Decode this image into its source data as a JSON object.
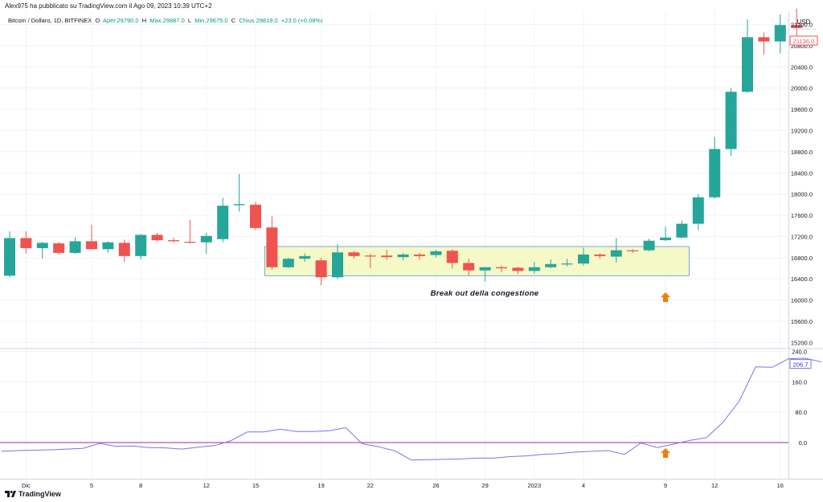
{
  "header": {
    "publisher": "Alex975 ha pubblicato su TradingView.com il Ago 09, 2023 10:39 UTC+2"
  },
  "legend": {
    "symbol": "Bitcoin / Dollaro, 1D, BITFINEX",
    "o_label": "O",
    "aper": "Aper.29790.0",
    "h_label": "H",
    "max": "Max.29887.0",
    "l_label": "L",
    "min": "Min.29675.0",
    "c_label": "C",
    "chius": "Chius.29819.0",
    "change": "+23.0 (+0.08%)"
  },
  "footer": {
    "logo_text": "TradingView"
  },
  "colors": {
    "up": "#26a69a",
    "down": "#ef5350",
    "indicator": "#7e71f0",
    "zero_line": "#9c27b0",
    "zone_fill": "#f5f9c8",
    "zone_stroke": "#5b8fdb",
    "arrow": "#f57c00",
    "axis_text": "#131722"
  },
  "chart_data": [
    {
      "type": "candlestick",
      "currency_label": "USD",
      "last_price_label": "21136.0",
      "y_ticks": [
        "21200.0",
        "20800.0",
        "20400.0",
        "20000.0",
        "19600.0",
        "19200.0",
        "18800.0",
        "18400.0",
        "18000.0",
        "17600.0",
        "17200.0",
        "16800.0",
        "16400.0",
        "16000.0",
        "15600.0",
        "15200.0"
      ],
      "ylim": [
        15100,
        21450
      ],
      "x_ticks": [
        {
          "i": 1,
          "label": "Dic"
        },
        {
          "i": 5,
          "label": "5"
        },
        {
          "i": 8,
          "label": "8"
        },
        {
          "i": 12,
          "label": "12"
        },
        {
          "i": 15,
          "label": "15"
        },
        {
          "i": 19,
          "label": "19"
        },
        {
          "i": 22,
          "label": "22"
        },
        {
          "i": 26,
          "label": "26"
        },
        {
          "i": 29,
          "label": "29"
        },
        {
          "i": 32,
          "label": "2023"
        },
        {
          "i": 35,
          "label": "4"
        },
        {
          "i": 40,
          "label": "9"
        },
        {
          "i": 43,
          "label": "12"
        },
        {
          "i": 47,
          "label": "16"
        }
      ],
      "candles": [
        {
          "o": 16460,
          "h": 17300,
          "l": 16430,
          "c": 17170
        },
        {
          "o": 17170,
          "h": 17300,
          "l": 16880,
          "c": 16980
        },
        {
          "o": 16980,
          "h": 17100,
          "l": 16780,
          "c": 17080
        },
        {
          "o": 17070,
          "h": 17100,
          "l": 16860,
          "c": 16890
        },
        {
          "o": 16890,
          "h": 17190,
          "l": 16870,
          "c": 17110
        },
        {
          "o": 17110,
          "h": 17420,
          "l": 16960,
          "c": 16960
        },
        {
          "o": 16960,
          "h": 17110,
          "l": 16890,
          "c": 17090
        },
        {
          "o": 17080,
          "h": 17140,
          "l": 16720,
          "c": 16830
        },
        {
          "o": 16830,
          "h": 17250,
          "l": 16770,
          "c": 17230
        },
        {
          "o": 17230,
          "h": 17270,
          "l": 17100,
          "c": 17130
        },
        {
          "o": 17130,
          "h": 17180,
          "l": 17090,
          "c": 17110
        },
        {
          "o": 17100,
          "h": 17510,
          "l": 17070,
          "c": 17090
        },
        {
          "o": 17090,
          "h": 17270,
          "l": 16870,
          "c": 17210
        },
        {
          "o": 17150,
          "h": 17930,
          "l": 17090,
          "c": 17780
        },
        {
          "o": 17790,
          "h": 18380,
          "l": 17670,
          "c": 17810
        },
        {
          "o": 17800,
          "h": 17850,
          "l": 17320,
          "c": 17360
        },
        {
          "o": 17370,
          "h": 17580,
          "l": 16570,
          "c": 16620
        },
        {
          "o": 16620,
          "h": 16800,
          "l": 16600,
          "c": 16780
        },
        {
          "o": 16780,
          "h": 16880,
          "l": 16720,
          "c": 16830
        },
        {
          "o": 16750,
          "h": 16800,
          "l": 16280,
          "c": 16430
        },
        {
          "o": 16430,
          "h": 17060,
          "l": 16400,
          "c": 16900
        },
        {
          "o": 16900,
          "h": 16930,
          "l": 16780,
          "c": 16830
        },
        {
          "o": 16840,
          "h": 16870,
          "l": 16600,
          "c": 16830
        },
        {
          "o": 16840,
          "h": 16950,
          "l": 16760,
          "c": 16810
        },
        {
          "o": 16810,
          "h": 16890,
          "l": 16750,
          "c": 16860
        },
        {
          "o": 16860,
          "h": 16890,
          "l": 16760,
          "c": 16830
        },
        {
          "o": 16850,
          "h": 16950,
          "l": 16800,
          "c": 16920
        },
        {
          "o": 16930,
          "h": 16960,
          "l": 16600,
          "c": 16700
        },
        {
          "o": 16700,
          "h": 16780,
          "l": 16460,
          "c": 16560
        },
        {
          "o": 16560,
          "h": 16620,
          "l": 16350,
          "c": 16620
        },
        {
          "o": 16620,
          "h": 16650,
          "l": 16530,
          "c": 16600
        },
        {
          "o": 16610,
          "h": 16630,
          "l": 16490,
          "c": 16550
        },
        {
          "o": 16550,
          "h": 16720,
          "l": 16500,
          "c": 16620
        },
        {
          "o": 16620,
          "h": 16770,
          "l": 16600,
          "c": 16680
        },
        {
          "o": 16680,
          "h": 16780,
          "l": 16640,
          "c": 16690
        },
        {
          "o": 16690,
          "h": 16990,
          "l": 16650,
          "c": 16860
        },
        {
          "o": 16860,
          "h": 16880,
          "l": 16780,
          "c": 16830
        },
        {
          "o": 16820,
          "h": 17170,
          "l": 16710,
          "c": 16940
        },
        {
          "o": 16940,
          "h": 16960,
          "l": 16890,
          "c": 16930
        },
        {
          "o": 16940,
          "h": 17160,
          "l": 16920,
          "c": 17120
        },
        {
          "o": 17130,
          "h": 17390,
          "l": 17110,
          "c": 17180
        },
        {
          "o": 17180,
          "h": 17500,
          "l": 17160,
          "c": 17440
        },
        {
          "o": 17440,
          "h": 18000,
          "l": 17320,
          "c": 17940
        },
        {
          "o": 17940,
          "h": 19080,
          "l": 17910,
          "c": 18850
        },
        {
          "o": 18850,
          "h": 20000,
          "l": 18720,
          "c": 19930
        },
        {
          "o": 19930,
          "h": 21300,
          "l": 19910,
          "c": 20960
        },
        {
          "o": 20960,
          "h": 21050,
          "l": 20630,
          "c": 20880
        },
        {
          "o": 20880,
          "h": 21390,
          "l": 20660,
          "c": 21190
        },
        {
          "o": 21190,
          "h": 21500,
          "l": 20900,
          "c": 21136
        }
      ],
      "annotation": {
        "text": "Break out della congestione"
      },
      "zone": {
        "i_start": 16,
        "i_end": 41,
        "y_low": 16460,
        "y_high": 17010
      },
      "arrow_index": 40
    },
    {
      "type": "line",
      "y_ticks": [
        "240.0",
        "160.0",
        "80.0",
        "0.0"
      ],
      "ylim": [
        -95,
        245
      ],
      "last_value_label": "206.7",
      "x_start": -0.5,
      "values": [
        -23,
        -21,
        -20,
        -19,
        -17,
        -15,
        -2,
        -10,
        -9,
        -13,
        -14,
        -17,
        -12,
        -8,
        5,
        28,
        28,
        35,
        29,
        29,
        31,
        39,
        -3,
        -11,
        -22,
        -46,
        -45,
        -44,
        -43,
        -41,
        -41,
        -37,
        -35,
        -31,
        -29,
        -25,
        -23,
        -21,
        -31,
        -1,
        -13,
        -4,
        6,
        13,
        53,
        109,
        199,
        198,
        220,
        222,
        212
      ]
    }
  ]
}
